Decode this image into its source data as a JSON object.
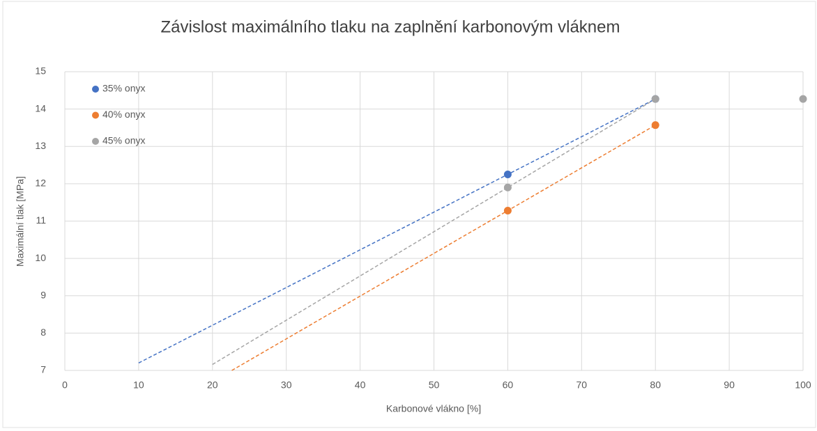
{
  "chart_data": {
    "type": "scatter",
    "title": "Závislost maximálního tlaku na zaplnění karbonovým vláknem",
    "x_label": "Karbonové vlákno [%]",
    "y_label": "Maximální tlak [MPa]",
    "xlim": [
      0,
      100
    ],
    "xticks": [
      0,
      10,
      20,
      30,
      40,
      50,
      60,
      70,
      80,
      90,
      100
    ],
    "ylim": [
      7,
      15
    ],
    "yticks": [
      7,
      8,
      9,
      10,
      11,
      12,
      13,
      14,
      15
    ],
    "grid": true,
    "legend": "upper left",
    "series": [
      {
        "name": "35% onyx",
        "color": "#4472c4",
        "x": [
          60,
          80
        ],
        "values": [
          12.25,
          14.27
        ],
        "trendline_x": [
          10,
          80
        ]
      },
      {
        "name": "40% onyx",
        "color": "#ed7d31",
        "x": [
          60,
          80
        ],
        "values": [
          11.28,
          13.57
        ],
        "trendline_x": [
          22,
          80
        ]
      },
      {
        "name": "45% onyx",
        "color": "#a5a5a5",
        "x": [
          60,
          80,
          100
        ],
        "values": [
          11.9,
          14.27,
          14.27
        ],
        "trendline_x": [
          20,
          80
        ]
      }
    ]
  }
}
